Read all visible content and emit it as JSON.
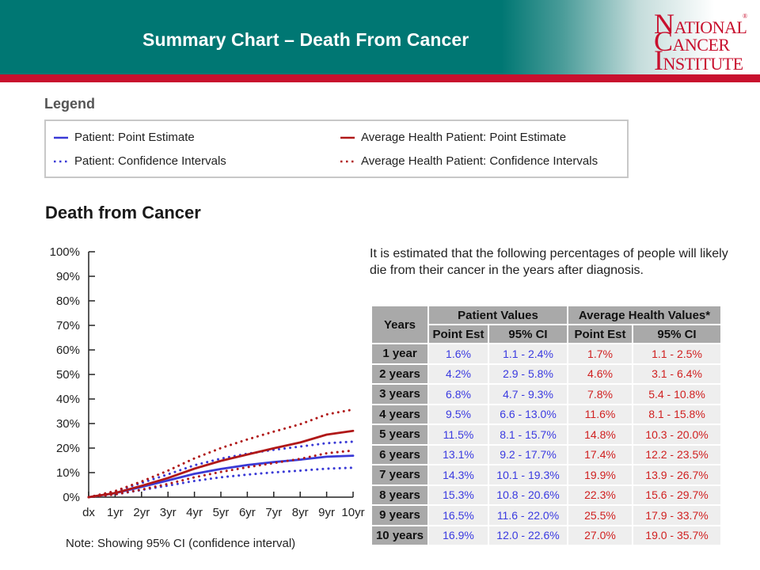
{
  "header": {
    "title": "Summary Chart – Death From Cancer"
  },
  "logo": {
    "line1_big": "N",
    "line1_small": "ATIONAL",
    "line2_big": "C",
    "line2_small": "ANCER",
    "line3_big": "I",
    "line3_small": "NSTITUTE",
    "registered_mark": "®"
  },
  "legend": {
    "heading": "Legend",
    "items": [
      {
        "label": "Patient: Point Estimate",
        "color": "#3a3ad6",
        "style": "solid"
      },
      {
        "label": "Average Health Patient: Point Estimate",
        "color": "#b01818",
        "style": "solid"
      },
      {
        "label": "Patient: Confidence Intervals",
        "color": "#3a3ad6",
        "style": "dotted"
      },
      {
        "label": "Average Health Patient: Confidence Intervals",
        "color": "#b01818",
        "style": "dotted"
      }
    ]
  },
  "chart_heading": "Death from Cancer",
  "chart_note": "Note: Showing 95% CI (confidence interval)",
  "intro_text": "It is estimated that the following percentages of people will likely die from their cancer in the years after diagnosis.",
  "chart_data": {
    "type": "line",
    "x": [
      "dx",
      "1yr",
      "2yr",
      "3yr",
      "4yr",
      "5yr",
      "6yr",
      "7yr",
      "8yr",
      "9yr",
      "10yr"
    ],
    "y_ticks": [
      "0%",
      "10%",
      "20%",
      "30%",
      "40%",
      "50%",
      "60%",
      "70%",
      "80%",
      "90%",
      "100%"
    ],
    "ylim": [
      0,
      100
    ],
    "legend_position": "top",
    "series": [
      {
        "name": "Patient: Point Estimate",
        "color": "#3a3ad6",
        "style": "solid",
        "values": [
          0,
          1.6,
          4.2,
          6.8,
          9.5,
          11.5,
          13.1,
          14.3,
          15.3,
          16.5,
          16.9
        ]
      },
      {
        "name": "Patient: Confidence Intervals",
        "color": "#3a3ad6",
        "style": "dotted",
        "values": [
          0,
          1.1,
          2.9,
          4.7,
          6.6,
          8.1,
          9.2,
          10.1,
          10.8,
          11.6,
          12.0
        ]
      },
      {
        "name": "Patient: Confidence Intervals",
        "color": "#3a3ad6",
        "style": "dotted",
        "values": [
          0,
          2.4,
          5.8,
          9.3,
          13.0,
          15.7,
          17.7,
          19.3,
          20.6,
          22.0,
          22.6
        ]
      },
      {
        "name": "Average Health Patient: Point Estimate",
        "color": "#b01818",
        "style": "solid",
        "values": [
          0,
          1.7,
          4.6,
          7.8,
          11.6,
          14.8,
          17.4,
          19.9,
          22.3,
          25.5,
          27.0
        ]
      },
      {
        "name": "Average Health Patient: Confidence Intervals",
        "color": "#b01818",
        "style": "dotted",
        "values": [
          0,
          1.1,
          3.1,
          5.4,
          8.1,
          10.3,
          12.2,
          13.9,
          15.6,
          17.9,
          19.0
        ]
      },
      {
        "name": "Average Health Patient: Confidence Intervals",
        "color": "#b01818",
        "style": "dotted",
        "values": [
          0,
          2.5,
          6.4,
          10.8,
          15.8,
          20.0,
          23.5,
          26.7,
          29.7,
          33.7,
          35.7
        ]
      }
    ]
  },
  "table": {
    "col_years": "Years",
    "group_patient": "Patient Values",
    "group_average": "Average Health Values*",
    "sub_point": "Point Est",
    "sub_ci": "95% CI",
    "rows": [
      {
        "year": "1 year",
        "p_est": "1.6%",
        "p_ci": "1.1 - 2.4%",
        "a_est": "1.7%",
        "a_ci": "1.1 - 2.5%"
      },
      {
        "year": "2 years",
        "p_est": "4.2%",
        "p_ci": "2.9 - 5.8%",
        "a_est": "4.6%",
        "a_ci": "3.1 - 6.4%"
      },
      {
        "year": "3 years",
        "p_est": "6.8%",
        "p_ci": "4.7 - 9.3%",
        "a_est": "7.8%",
        "a_ci": "5.4 - 10.8%"
      },
      {
        "year": "4 years",
        "p_est": "9.5%",
        "p_ci": "6.6 - 13.0%",
        "a_est": "11.6%",
        "a_ci": "8.1 - 15.8%"
      },
      {
        "year": "5 years",
        "p_est": "11.5%",
        "p_ci": "8.1 - 15.7%",
        "a_est": "14.8%",
        "a_ci": "10.3 - 20.0%"
      },
      {
        "year": "6 years",
        "p_est": "13.1%",
        "p_ci": "9.2 - 17.7%",
        "a_est": "17.4%",
        "a_ci": "12.2 - 23.5%"
      },
      {
        "year": "7 years",
        "p_est": "14.3%",
        "p_ci": "10.1 - 19.3%",
        "a_est": "19.9%",
        "a_ci": "13.9 - 26.7%"
      },
      {
        "year": "8 years",
        "p_est": "15.3%",
        "p_ci": "10.8 - 20.6%",
        "a_est": "22.3%",
        "a_ci": "15.6 - 29.7%"
      },
      {
        "year": "9 years",
        "p_est": "16.5%",
        "p_ci": "11.6 - 22.0%",
        "a_est": "25.5%",
        "a_ci": "17.9 - 33.7%"
      },
      {
        "year": "10 years",
        "p_est": "16.9%",
        "p_ci": "12.0 - 22.6%",
        "a_est": "27.0%",
        "a_ci": "19.0 - 35.7%"
      }
    ]
  }
}
